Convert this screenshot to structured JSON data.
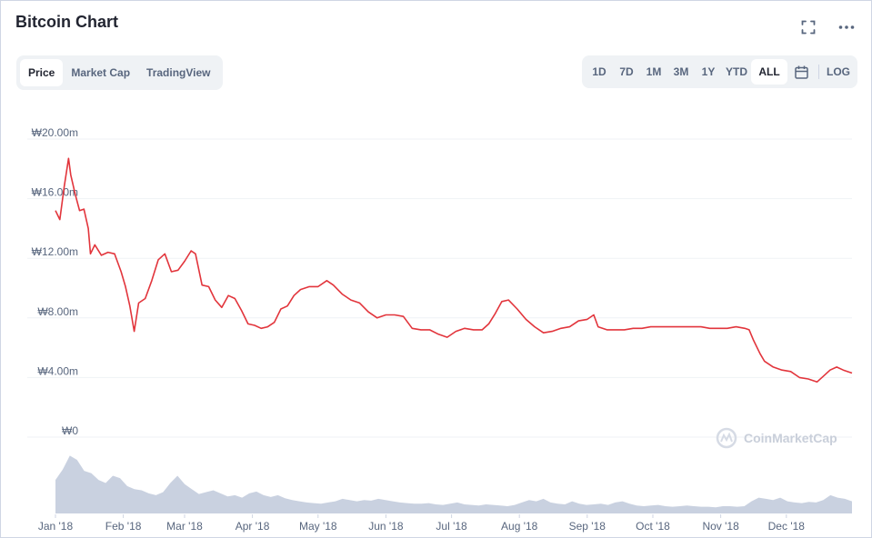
{
  "header": {
    "title": "Bitcoin Chart",
    "expand_icon": "expand-icon",
    "more_icon": "more-horizontal-icon"
  },
  "tabs": [
    {
      "label": "Price",
      "active": true
    },
    {
      "label": "Market Cap",
      "active": false
    },
    {
      "label": "TradingView",
      "active": false
    }
  ],
  "ranges": {
    "items": [
      {
        "label": "1D",
        "active": false
      },
      {
        "label": "7D",
        "active": false
      },
      {
        "label": "1M",
        "active": false
      },
      {
        "label": "3M",
        "active": false
      },
      {
        "label": "1Y",
        "active": false
      },
      {
        "label": "YTD",
        "active": false
      },
      {
        "label": "ALL",
        "active": true
      }
    ],
    "calendar_icon": "calendar-icon",
    "log_label": "LOG"
  },
  "watermark": "CoinMarketCap",
  "colors": {
    "line": "#e2353c",
    "volume": "#c9d1e0",
    "grid": "#eff2f5",
    "axis_text": "#58667e"
  },
  "chart_data": {
    "type": "line",
    "ylabel": "",
    "yticks": [
      "₩0",
      "₩4.00m",
      "₩8.00m",
      "₩12.00m",
      "₩16.00m",
      "₩20.00m"
    ],
    "ylim": [
      0,
      20000000
    ],
    "xticks": [
      "Jan '18",
      "Feb '18",
      "Mar '18",
      "Apr '18",
      "May '18",
      "Jun '18",
      "Jul '18",
      "Aug '18",
      "Sep '18",
      "Oct '18",
      "Nov '18",
      "Dec '18"
    ],
    "grid": true,
    "series": [
      {
        "values_unit": "KRW",
        "x": [
          "2018-01-01",
          "2018-01-03",
          "2018-01-05",
          "2018-01-07",
          "2018-01-08",
          "2018-01-10",
          "2018-01-12",
          "2018-01-14",
          "2018-01-16",
          "2018-01-17",
          "2018-01-19",
          "2018-01-22",
          "2018-01-25",
          "2018-01-28",
          "2018-01-31",
          "2018-02-02",
          "2018-02-04",
          "2018-02-06",
          "2018-02-08",
          "2018-02-11",
          "2018-02-14",
          "2018-02-17",
          "2018-02-20",
          "2018-02-23",
          "2018-02-26",
          "2018-03-01",
          "2018-03-04",
          "2018-03-06",
          "2018-03-09",
          "2018-03-12",
          "2018-03-15",
          "2018-03-18",
          "2018-03-21",
          "2018-03-24",
          "2018-03-27",
          "2018-03-30",
          "2018-04-02",
          "2018-04-05",
          "2018-04-08",
          "2018-04-11",
          "2018-04-14",
          "2018-04-17",
          "2018-04-20",
          "2018-04-23",
          "2018-04-27",
          "2018-05-01",
          "2018-05-05",
          "2018-05-08",
          "2018-05-12",
          "2018-05-16",
          "2018-05-20",
          "2018-05-24",
          "2018-05-28",
          "2018-06-01",
          "2018-06-05",
          "2018-06-09",
          "2018-06-13",
          "2018-06-17",
          "2018-06-21",
          "2018-06-25",
          "2018-06-29",
          "2018-07-03",
          "2018-07-07",
          "2018-07-11",
          "2018-07-15",
          "2018-07-18",
          "2018-07-21",
          "2018-07-24",
          "2018-07-27",
          "2018-07-31",
          "2018-08-04",
          "2018-08-08",
          "2018-08-12",
          "2018-08-16",
          "2018-08-20",
          "2018-08-24",
          "2018-08-28",
          "2018-09-01",
          "2018-09-04",
          "2018-09-06",
          "2018-09-10",
          "2018-09-14",
          "2018-09-18",
          "2018-09-22",
          "2018-09-26",
          "2018-09-30",
          "2018-10-04",
          "2018-10-08",
          "2018-10-11",
          "2018-10-15",
          "2018-10-19",
          "2018-10-23",
          "2018-10-27",
          "2018-10-31",
          "2018-11-04",
          "2018-11-08",
          "2018-11-12",
          "2018-11-14",
          "2018-11-16",
          "2018-11-19",
          "2018-11-21",
          "2018-11-25",
          "2018-11-29",
          "2018-12-03",
          "2018-12-07",
          "2018-12-11",
          "2018-12-15",
          "2018-12-18",
          "2018-12-21",
          "2018-12-24",
          "2018-12-27",
          "2018-12-31"
        ],
        "values": [
          15200000,
          14600000,
          16800000,
          18700000,
          17600000,
          16300000,
          15200000,
          15300000,
          14000000,
          12300000,
          12900000,
          12200000,
          12400000,
          12300000,
          11100000,
          10100000,
          8800000,
          7100000,
          9000000,
          9300000,
          10500000,
          11900000,
          12300000,
          11100000,
          11200000,
          11800000,
          12500000,
          12300000,
          10200000,
          10100000,
          9200000,
          8700000,
          9500000,
          9300000,
          8500000,
          7600000,
          7500000,
          7300000,
          7400000,
          7700000,
          8600000,
          8800000,
          9500000,
          9900000,
          10100000,
          10100000,
          10500000,
          10200000,
          9600000,
          9200000,
          9000000,
          8400000,
          8000000,
          8200000,
          8200000,
          8100000,
          7300000,
          7200000,
          7200000,
          6900000,
          6700000,
          7100000,
          7300000,
          7200000,
          7200000,
          7600000,
          8300000,
          9100000,
          9200000,
          8600000,
          7900000,
          7400000,
          7000000,
          7100000,
          7300000,
          7400000,
          7800000,
          7900000,
          8200000,
          7400000,
          7200000,
          7200000,
          7200000,
          7300000,
          7300000,
          7400000,
          7400000,
          7400000,
          7400000,
          7400000,
          7400000,
          7400000,
          7300000,
          7300000,
          7300000,
          7400000,
          7300000,
          7200000,
          6500000,
          5600000,
          5100000,
          4700000,
          4500000,
          4400000,
          4000000,
          3900000,
          3700000,
          4100000,
          4500000,
          4700000,
          4500000,
          4300000
        ]
      }
    ],
    "volume": {
      "values": [
        0.55,
        0.72,
        0.95,
        0.88,
        0.7,
        0.66,
        0.55,
        0.5,
        0.62,
        0.58,
        0.45,
        0.4,
        0.38,
        0.33,
        0.3,
        0.35,
        0.5,
        0.62,
        0.48,
        0.4,
        0.32,
        0.35,
        0.38,
        0.33,
        0.28,
        0.3,
        0.26,
        0.33,
        0.36,
        0.3,
        0.27,
        0.3,
        0.25,
        0.22,
        0.2,
        0.18,
        0.17,
        0.16,
        0.18,
        0.2,
        0.24,
        0.22,
        0.2,
        0.22,
        0.21,
        0.24,
        0.22,
        0.2,
        0.18,
        0.17,
        0.16,
        0.16,
        0.17,
        0.15,
        0.14,
        0.16,
        0.18,
        0.15,
        0.14,
        0.13,
        0.15,
        0.14,
        0.13,
        0.12,
        0.14,
        0.18,
        0.22,
        0.2,
        0.24,
        0.18,
        0.16,
        0.15,
        0.2,
        0.16,
        0.14,
        0.15,
        0.16,
        0.14,
        0.18,
        0.2,
        0.16,
        0.13,
        0.12,
        0.13,
        0.14,
        0.12,
        0.11,
        0.12,
        0.13,
        0.12,
        0.11,
        0.11,
        0.1,
        0.12,
        0.12,
        0.11,
        0.12,
        0.2,
        0.26,
        0.24,
        0.22,
        0.26,
        0.2,
        0.18,
        0.17,
        0.19,
        0.18,
        0.22,
        0.3,
        0.26,
        0.24,
        0.2
      ]
    }
  }
}
